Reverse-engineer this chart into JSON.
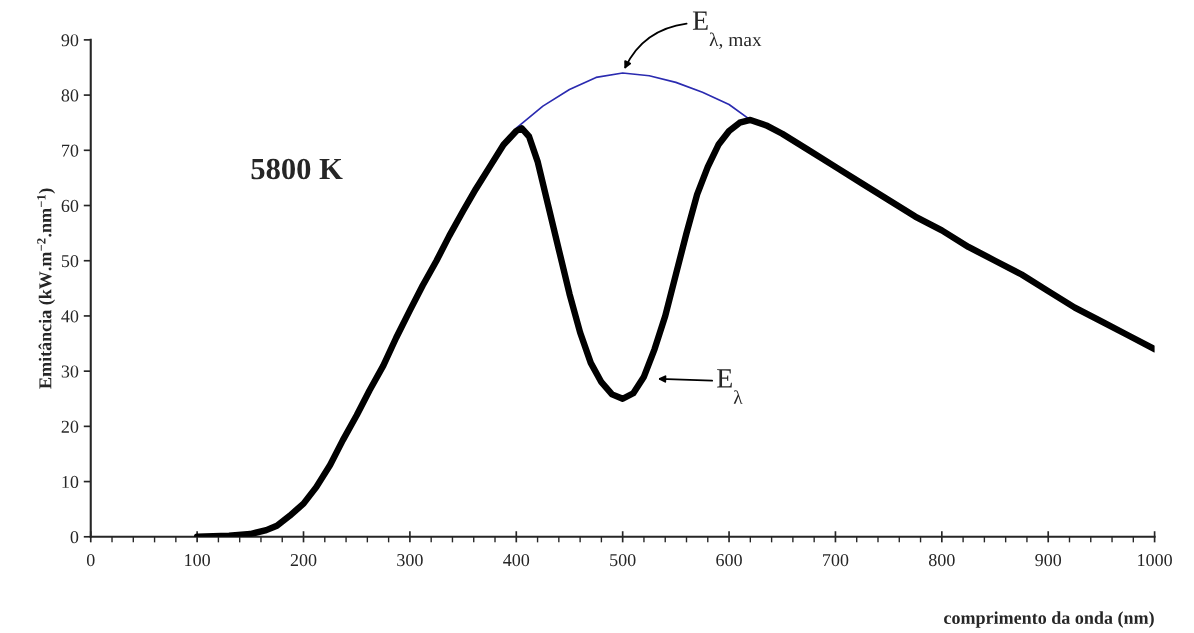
{
  "chart_data": {
    "type": "line",
    "xlabel": "comprimento da onda (nm)",
    "ylabel": "Emitância (kW.m$^{−2}$.nm$^{−1}$)",
    "xlim": [
      0,
      1000
    ],
    "ylim": [
      0,
      90
    ],
    "xticks": [
      0,
      {
        "value": 20,
        "label": null
      },
      {
        "value": 40,
        "label": null
      },
      {
        "value": 60,
        "label": null
      },
      {
        "value": 80,
        "label": null
      },
      100,
      {
        "value": 120,
        "label": null
      },
      {
        "value": 140,
        "label": null
      },
      {
        "value": 160,
        "label": null
      },
      {
        "value": 180,
        "label": null
      },
      200,
      {
        "value": 220,
        "label": null
      },
      {
        "value": 240,
        "label": null
      },
      {
        "value": 260,
        "label": null
      },
      {
        "value": 280,
        "label": null
      },
      300,
      {
        "value": 320,
        "label": null
      },
      {
        "value": 340,
        "label": null
      },
      {
        "value": 360,
        "label": null
      },
      {
        "value": 380,
        "label": null
      },
      400,
      {
        "value": 420,
        "label": null
      },
      {
        "value": 440,
        "label": null
      },
      {
        "value": 460,
        "label": null
      },
      {
        "value": 480,
        "label": null
      },
      500,
      {
        "value": 520,
        "label": null
      },
      {
        "value": 540,
        "label": null
      },
      {
        "value": 560,
        "label": null
      },
      {
        "value": 580,
        "label": null
      },
      600,
      {
        "value": 620,
        "label": null
      },
      {
        "value": 640,
        "label": null
      },
      {
        "value": 660,
        "label": null
      },
      {
        "value": 680,
        "label": null
      },
      700,
      {
        "value": 720,
        "label": null
      },
      {
        "value": 740,
        "label": null
      },
      {
        "value": 760,
        "label": null
      },
      {
        "value": 780,
        "label": null
      },
      800,
      {
        "value": 820,
        "label": null
      },
      {
        "value": 840,
        "label": null
      },
      {
        "value": 860,
        "label": null
      },
      {
        "value": 880,
        "label": null
      },
      900,
      {
        "value": 920,
        "label": null
      },
      {
        "value": 940,
        "label": null
      },
      {
        "value": 960,
        "label": null
      },
      {
        "value": 980,
        "label": null
      },
      1000
    ],
    "yticks": [
      0,
      10,
      20,
      30,
      40,
      50,
      60,
      70,
      80,
      90
    ],
    "grid": false,
    "legend": false,
    "marker": "none",
    "line_style": "solid",
    "series": [
      {
        "color": "#000000",
        "x": [
          100,
          130,
          150,
          165,
          175,
          187,
          200,
          212,
          225,
          237,
          250,
          262,
          275,
          287,
          300,
          312,
          325,
          337,
          350,
          362,
          375,
          388,
          400,
          405,
          412,
          420,
          430,
          440,
          450,
          460,
          470,
          480,
          490,
          500,
          510,
          520,
          530,
          540,
          550,
          560,
          570,
          580,
          590,
          600,
          610,
          620,
          635,
          650,
          675,
          700,
          725,
          750,
          775,
          800,
          825,
          850,
          875,
          900,
          925,
          950,
          975,
          1000
        ],
        "values": [
          0,
          0.2,
          0.5,
          1.2,
          2,
          3.8,
          6,
          9,
          13,
          17.5,
          22,
          26.5,
          31,
          36,
          41,
          45.5,
          50,
          54.5,
          59,
          63,
          67,
          71,
          73.5,
          74,
          72.5,
          68,
          60,
          52,
          44,
          37,
          31.5,
          28,
          25.8,
          25,
          26,
          29,
          34,
          40,
          47.5,
          55,
          62,
          67,
          71,
          73.5,
          75,
          75.5,
          74.5,
          73,
          70,
          67,
          64,
          61,
          58,
          55.5,
          52.5,
          50,
          47.5,
          44.5,
          41.5,
          39,
          36.5,
          34
        ]
      },
      {
        "color": "#2b2bb0",
        "x": [
          400,
          425,
          450,
          475,
          500,
          525,
          550,
          575,
          600,
          620
        ],
        "values": [
          74,
          78,
          81,
          83.2,
          84,
          83.5,
          82.3,
          80.5,
          78.3,
          75.5
        ]
      }
    ],
    "annotations": [
      "5800 K",
      {
        "text": "E$_{λ, max}$",
        "x": 500,
        "y": 84
      },
      "E$_{λ}$"
    ]
  }
}
